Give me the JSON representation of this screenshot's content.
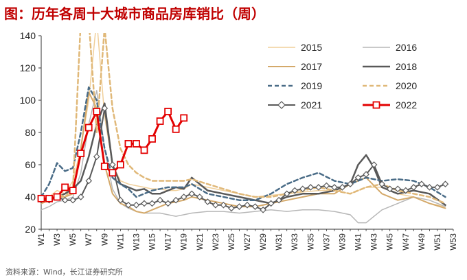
{
  "title": "图：历年各周十大城市商品房库销比（周）",
  "source": "资料来源：Wind，长江证券研究所",
  "chart_data": {
    "type": "line",
    "title": "图：历年各周十大城市商品房库销比（周）",
    "xlabel": "",
    "ylabel": "",
    "ylim": [
      20,
      140
    ],
    "yticks": [
      20,
      40,
      60,
      80,
      100,
      120,
      140
    ],
    "xlim": [
      1,
      53
    ],
    "xtick_labels": [
      "W1",
      "W3",
      "W5",
      "W7",
      "W9",
      "W11",
      "W13",
      "W15",
      "W17",
      "W19",
      "W21",
      "W23",
      "W25",
      "W27",
      "W29",
      "W31",
      "W33",
      "W35",
      "W37",
      "W39",
      "W41",
      "W43",
      "W45",
      "W47",
      "W49",
      "W51",
      "W53"
    ],
    "grid": false,
    "legend_position": "top-right",
    "series": [
      {
        "name": "2015",
        "color": "#f0cf9a",
        "dash": "solid",
        "width": 1.5,
        "marker": "none",
        "x": [
          1,
          2,
          3,
          4,
          5,
          6,
          7,
          8,
          9,
          10,
          11,
          12,
          13,
          14,
          15,
          16,
          17,
          18,
          19,
          20,
          22,
          24,
          26,
          28,
          30,
          32,
          34,
          36,
          38,
          40,
          42,
          44,
          46,
          48,
          50,
          52
        ],
        "y": [
          38,
          40,
          44,
          42,
          50,
          70,
          100,
          150,
          90,
          60,
          50,
          48,
          47,
          46,
          45,
          45,
          44,
          44,
          45,
          48,
          46,
          44,
          42,
          40,
          41,
          42,
          43,
          44,
          44,
          42,
          46,
          46,
          42,
          40,
          36,
          34
        ]
      },
      {
        "name": "2016",
        "color": "#b7b7b7",
        "dash": "solid",
        "width": 1.5,
        "marker": "none",
        "x": [
          1,
          2,
          3,
          4,
          5,
          6,
          7,
          8,
          9,
          10,
          11,
          12,
          13,
          14,
          15,
          16,
          17,
          18,
          19,
          20,
          22,
          24,
          26,
          28,
          30,
          32,
          34,
          36,
          38,
          40,
          41,
          42,
          43,
          44,
          46,
          48,
          50,
          52
        ],
        "y": [
          32,
          34,
          37,
          38,
          40,
          55,
          85,
          106,
          70,
          45,
          36,
          33,
          31,
          30,
          30,
          30,
          29,
          28,
          29,
          30,
          31,
          31,
          30,
          31,
          32,
          31,
          32,
          32,
          31,
          29,
          24,
          24,
          28,
          32,
          36,
          40,
          38,
          34
        ]
      },
      {
        "name": "2017",
        "color": "#d4a96a",
        "dash": "solid",
        "width": 2,
        "marker": "none",
        "x": [
          1,
          2,
          3,
          4,
          5,
          6,
          7,
          8,
          9,
          10,
          11,
          12,
          13,
          14,
          15,
          16,
          17,
          18,
          19,
          20,
          22,
          24,
          26,
          28,
          30,
          32,
          34,
          36,
          38,
          40,
          42,
          44,
          46,
          48,
          50,
          52
        ],
        "y": [
          36,
          38,
          40,
          40,
          42,
          70,
          105,
          95,
          60,
          42,
          36,
          34,
          31,
          30,
          32,
          34,
          36,
          37,
          38,
          40,
          38,
          36,
          34,
          34,
          36,
          38,
          40,
          42,
          42,
          48,
          52,
          42,
          38,
          40,
          36,
          33
        ]
      },
      {
        "name": "2018",
        "color": "#595959",
        "dash": "solid",
        "width": 2.5,
        "marker": "none",
        "x": [
          1,
          2,
          3,
          4,
          5,
          6,
          7,
          8,
          9,
          10,
          11,
          12,
          13,
          14,
          15,
          16,
          17,
          18,
          19,
          20,
          22,
          24,
          26,
          28,
          30,
          32,
          34,
          36,
          38,
          40,
          41,
          42,
          43,
          44,
          46,
          48,
          50,
          52
        ],
        "y": [
          37,
          38,
          40,
          42,
          45,
          50,
          65,
          85,
          98,
          60,
          48,
          46,
          44,
          45,
          42,
          42,
          44,
          46,
          45,
          52,
          44,
          42,
          40,
          38,
          36,
          40,
          42,
          42,
          44,
          48,
          60,
          66,
          58,
          46,
          42,
          44,
          42,
          35
        ]
      },
      {
        "name": "2019",
        "color": "#4a6c87",
        "dash": "dashed",
        "width": 2.5,
        "marker": "none",
        "x": [
          1,
          2,
          3,
          4,
          5,
          6,
          7,
          8,
          9,
          10,
          11,
          12,
          13,
          14,
          15,
          16,
          17,
          18,
          19,
          20,
          22,
          24,
          26,
          28,
          30,
          32,
          34,
          36,
          38,
          40,
          42,
          44,
          46,
          48,
          50,
          52
        ],
        "y": [
          40,
          48,
          61,
          56,
          58,
          80,
          108,
          100,
          70,
          52,
          48,
          45,
          40,
          42,
          44,
          45,
          46,
          46,
          46,
          48,
          42,
          40,
          38,
          38,
          42,
          48,
          52,
          55,
          50,
          48,
          52,
          50,
          51,
          50,
          46,
          40
        ]
      },
      {
        "name": "2020",
        "color": "#e0b878",
        "dash": "dashed",
        "width": 2.5,
        "marker": "none",
        "x": [
          1,
          2,
          3,
          4,
          5,
          6,
          7,
          8,
          9,
          10,
          11,
          12,
          13,
          14,
          15,
          16,
          17,
          18,
          19,
          20,
          22,
          24,
          26,
          28,
          30,
          32,
          34,
          36,
          38,
          40,
          42,
          44,
          46,
          48,
          50,
          52
        ],
        "y": [
          36,
          38,
          42,
          40,
          45,
          150,
          150,
          80,
          145,
          95,
          70,
          60,
          55,
          52,
          50,
          50,
          50,
          50,
          50,
          51,
          48,
          45,
          42,
          40,
          40,
          42,
          44,
          46,
          44,
          42,
          46,
          48,
          44,
          42,
          40,
          36
        ]
      },
      {
        "name": "2021",
        "color": "#595959",
        "dash": "solid",
        "width": 2,
        "marker": "diamond",
        "x": [
          1,
          2,
          3,
          4,
          5,
          6,
          7,
          8,
          9,
          10,
          11,
          12,
          13,
          14,
          15,
          16,
          17,
          18,
          19,
          20,
          21,
          22,
          23,
          24,
          25,
          26,
          27,
          28,
          29,
          30,
          31,
          32,
          33,
          34,
          35,
          36,
          37,
          38,
          39,
          40,
          41,
          42,
          43,
          44,
          45,
          46,
          47,
          48,
          49,
          50,
          51,
          52
        ],
        "y": [
          38,
          38,
          40,
          38,
          38,
          40,
          50,
          65,
          95,
          60,
          38,
          35,
          35,
          36,
          36,
          38,
          36,
          38,
          40,
          42,
          40,
          37,
          35,
          35,
          33,
          34,
          35,
          34,
          32,
          36,
          38,
          42,
          44,
          45,
          46,
          46,
          47,
          46,
          46,
          48,
          52,
          54,
          60,
          48,
          45,
          45,
          44,
          46,
          48,
          46,
          46,
          48
        ]
      },
      {
        "name": "2022",
        "color": "#e30000",
        "dash": "solid",
        "width": 3,
        "marker": "square",
        "x": [
          1,
          2,
          3,
          4,
          5,
          6,
          7,
          8,
          9,
          10,
          11,
          12,
          13,
          14,
          15,
          16,
          17,
          18,
          19
        ],
        "y": [
          39,
          39,
          40,
          46,
          44,
          67,
          83,
          93,
          59,
          55,
          60,
          73,
          73,
          69,
          76,
          87,
          93,
          82,
          89
        ]
      }
    ]
  }
}
